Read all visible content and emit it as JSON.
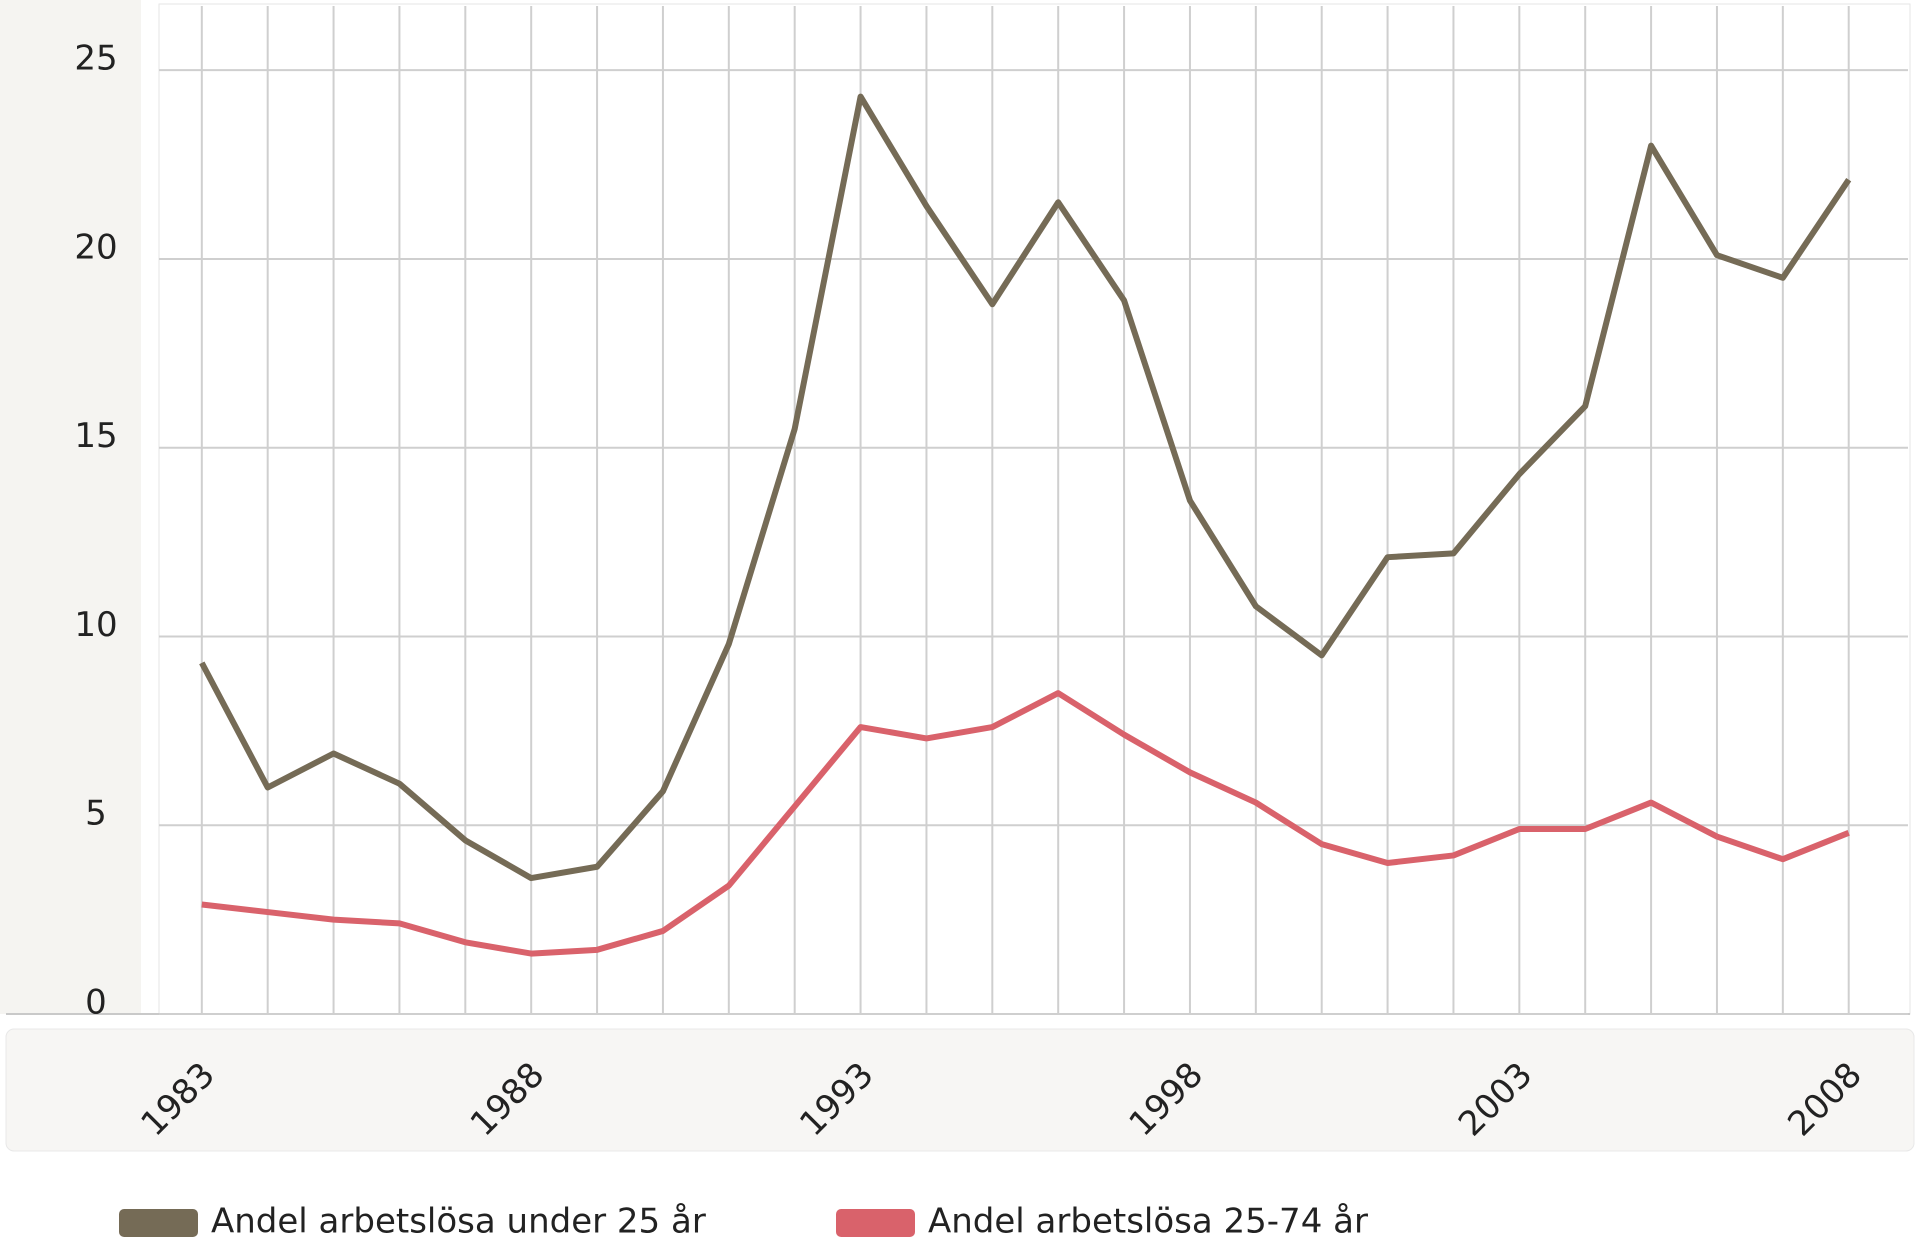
{
  "chart_data": {
    "type": "line",
    "x": [
      1983,
      1984,
      1985,
      1986,
      1987,
      1988,
      1989,
      1990,
      1991,
      1992,
      1993,
      1994,
      1995,
      1996,
      1997,
      1998,
      1999,
      2000,
      2001,
      2002,
      2003,
      2004,
      2005,
      2006,
      2007,
      2008
    ],
    "series": [
      {
        "name": "Andel arbetslösa under 25 år",
        "color": "#756b56",
        "values": [
          9.3,
          6.0,
          6.9,
          6.1,
          4.6,
          3.6,
          3.9,
          5.9,
          9.8,
          15.5,
          24.3,
          21.4,
          18.8,
          21.5,
          18.9,
          13.6,
          10.8,
          9.5,
          12.1,
          12.2,
          14.3,
          16.1,
          23.0,
          20.1,
          19.5,
          22.1
        ]
      },
      {
        "name": "Andel arbetslösa 25-74 år",
        "color": "#d9626b",
        "values": [
          2.9,
          2.7,
          2.5,
          2.4,
          1.9,
          1.6,
          1.7,
          2.2,
          3.4,
          5.5,
          7.6,
          7.3,
          7.6,
          8.5,
          7.4,
          6.4,
          5.6,
          4.5,
          4.0,
          4.2,
          4.9,
          4.9,
          5.6,
          4.7,
          4.1,
          4.8
        ]
      }
    ],
    "xlim": [
      1982.35,
      2008.9
    ],
    "xticks": [
      1983,
      1988,
      1993,
      1998,
      2003,
      2008
    ],
    "ylim": [
      0,
      26.7
    ],
    "yticks": [
      0,
      5,
      10,
      15,
      20,
      25
    ],
    "grid": true,
    "legend": "bottom"
  }
}
